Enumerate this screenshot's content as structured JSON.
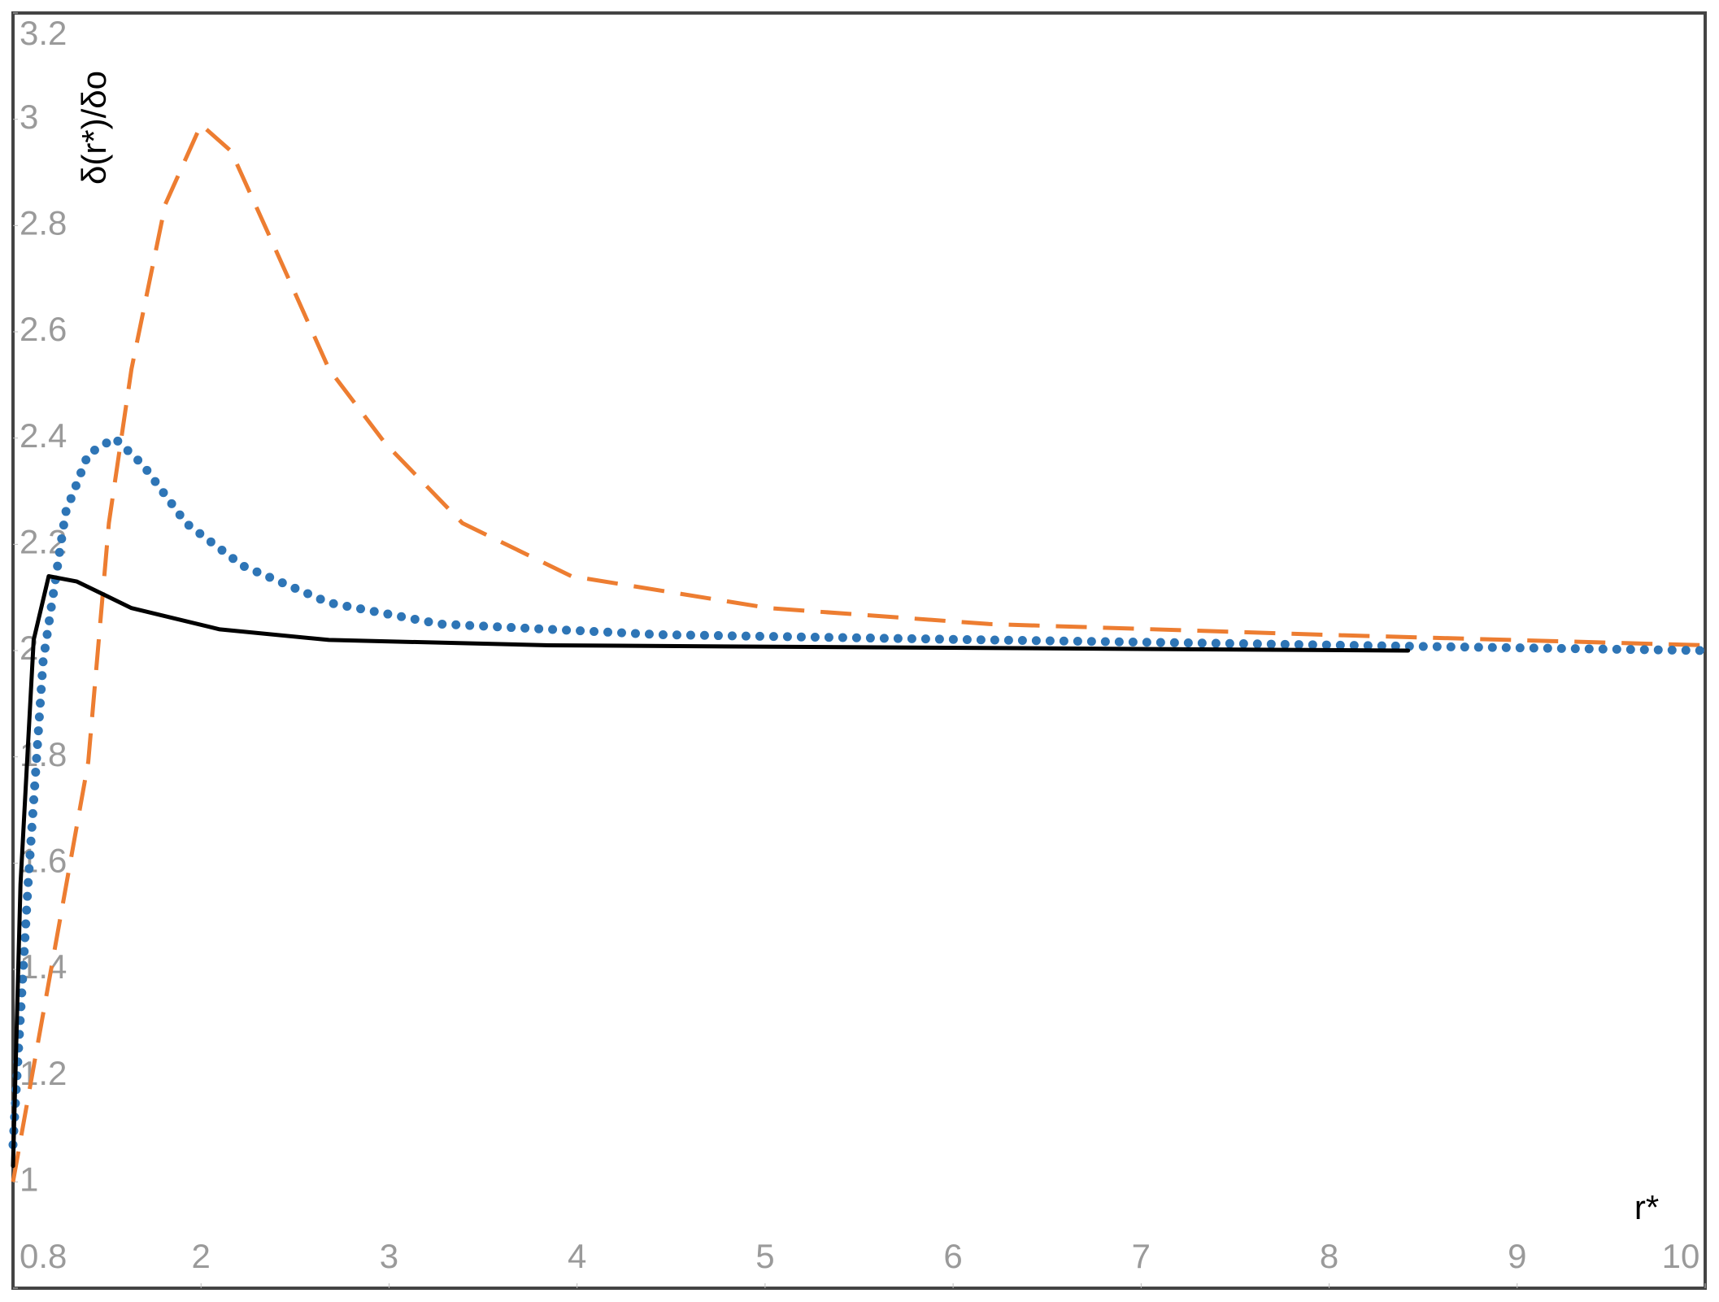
{
  "chart_data": {
    "type": "line",
    "x_label": "r*",
    "y_label": "δ(r*)/δo",
    "xlim": [
      1,
      10
    ],
    "ylim": [
      0.8,
      3.2
    ],
    "xticks": [
      2,
      3,
      4,
      5,
      6,
      7,
      8,
      9,
      10
    ],
    "yticks": [
      0.8,
      1,
      1.2,
      1.4,
      1.6,
      1.8,
      2,
      2.2,
      2.4,
      2.6,
      2.8,
      3,
      3.2
    ],
    "series": [
      {
        "color": "#ed7d31",
        "linestyle": "dashed",
        "x": [
          1.0,
          1.4,
          1.51,
          1.63,
          1.81,
          2.0,
          2.16,
          2.39,
          2.68,
          2.98,
          3.39,
          3.97,
          5.02,
          6.19,
          7.95,
          10
        ],
        "values": [
          1.0,
          1.79,
          2.24,
          2.53,
          2.84,
          2.99,
          2.94,
          2.76,
          2.53,
          2.39,
          2.24,
          2.14,
          2.08,
          2.05,
          2.03,
          2.01
        ]
      },
      {
        "color": "#2e75b6",
        "linestyle": "dotted",
        "x": [
          1.0,
          1.08,
          1.16,
          1.28,
          1.4,
          1.54,
          1.69,
          1.92,
          2.22,
          2.68,
          3.27,
          4.44,
          6.19,
          10
        ],
        "values": [
          1.07,
          1.56,
          1.98,
          2.26,
          2.37,
          2.4,
          2.35,
          2.24,
          2.16,
          2.09,
          2.05,
          2.03,
          2.02,
          2.0
        ]
      },
      {
        "color": "#000000",
        "linestyle": "solid",
        "x": [
          1.0,
          1.04,
          1.11,
          1.19,
          1.34,
          1.63,
          2.1,
          2.68,
          3.85,
          8.42
        ],
        "values": [
          1.03,
          1.56,
          2.02,
          2.14,
          2.13,
          2.08,
          2.04,
          2.02,
          2.01,
          2.0
        ]
      }
    ]
  }
}
